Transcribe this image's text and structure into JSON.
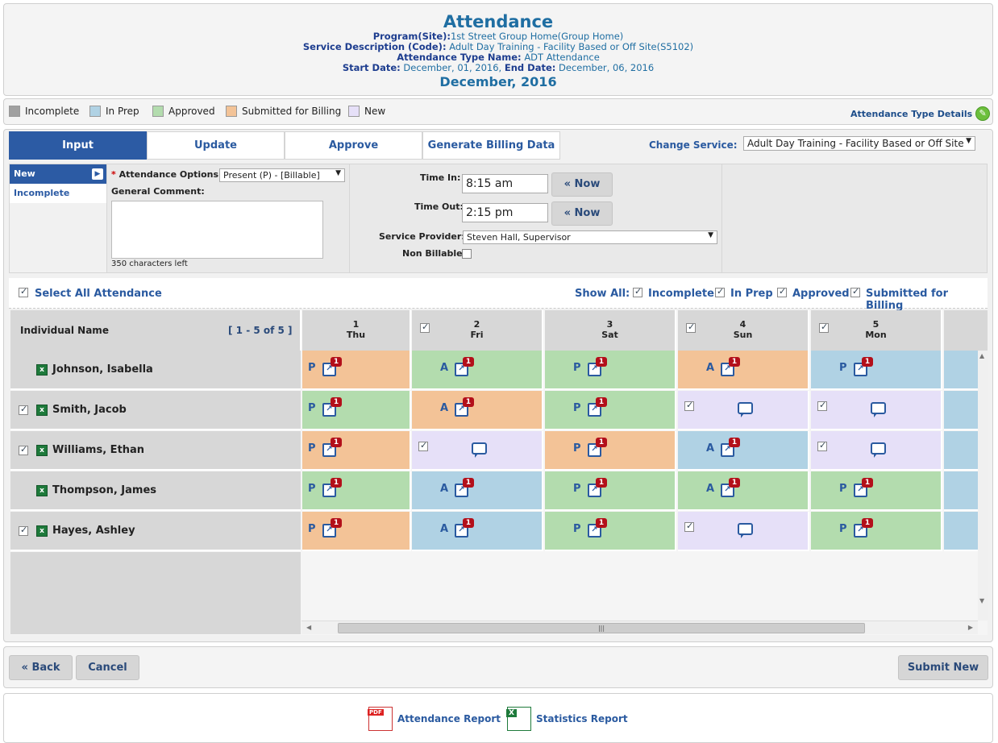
{
  "header": {
    "title": "Attendance",
    "program_label": "Program(Site):",
    "program_value": "1st Street Group Home(Group Home)",
    "service_label": "Service Description (Code):",
    "service_value": "Adult Day Training - Facility Based or Off Site(S5102)",
    "att_type_label": "Attendance Type Name:",
    "att_type_value": "ADT Attendance",
    "start_label": "Start Date:",
    "start_value": "December, 01, 2016,",
    "end_label": "End Date:",
    "end_value": "December, 06, 2016",
    "month": "December, 2016"
  },
  "legend": {
    "items": [
      {
        "label": "Incomplete",
        "color": "#a0a0a0"
      },
      {
        "label": "In Prep",
        "color": "#b0d2e4"
      },
      {
        "label": "Approved",
        "color": "#b3dcae"
      },
      {
        "label": "Submitted for Billing",
        "color": "#f3c397"
      },
      {
        "label": "New",
        "color": "#e6e0f8"
      }
    ],
    "details_link": "Attendance Type Details"
  },
  "tabs": [
    "Input",
    "Update",
    "Approve",
    "Generate Billing Data"
  ],
  "change_service": {
    "label": "Change Service:",
    "value": "Adult Day Training - Facility Based or Off Site"
  },
  "input": {
    "status_items": [
      "New",
      "Incomplete"
    ],
    "attendance_options_label": "Attendance Options:",
    "attendance_options_value": "Present (P) - [Billable]",
    "general_comment_label": "General Comment:",
    "chars_left": "350 characters left",
    "time_in_label": "Time In:",
    "time_in_value": "8:15 am",
    "time_out_label": "Time Out:",
    "time_out_value": "2:15 pm",
    "now_label": "« Now",
    "service_provider_label": "Service Provider:",
    "service_provider_value": "Steven Hall, Supervisor",
    "non_billable_label": "Non Billable:"
  },
  "select_all": {
    "label": "Select All Attendance",
    "show_all_label": "Show All:",
    "filters": [
      "Incomplete",
      "In Prep",
      "Approved",
      "Submitted for Billing"
    ]
  },
  "grid": {
    "name_header": "Individual Name",
    "range": "[ 1 - 5 of 5 ]",
    "days": [
      {
        "num": "1",
        "dow": "Thu",
        "check": false
      },
      {
        "num": "2",
        "dow": "Fri",
        "check": true
      },
      {
        "num": "3",
        "dow": "Sat",
        "check": false
      },
      {
        "num": "4",
        "dow": "Sun",
        "check": true
      },
      {
        "num": "5",
        "dow": "Mon",
        "check": true
      }
    ],
    "rows": [
      {
        "name": "Johnson, Isabella",
        "check": false,
        "cells": [
          {
            "s": "bill",
            "code": "P"
          },
          {
            "s": "app",
            "code": "A"
          },
          {
            "s": "app",
            "code": "P"
          },
          {
            "s": "bill",
            "code": "A"
          },
          {
            "s": "prep",
            "code": "P"
          }
        ]
      },
      {
        "name": "Smith, Jacob",
        "check": true,
        "cells": [
          {
            "s": "app",
            "code": "P"
          },
          {
            "s": "bill",
            "code": "A"
          },
          {
            "s": "app",
            "code": "P"
          },
          {
            "s": "new",
            "code": ""
          },
          {
            "s": "new",
            "code": ""
          }
        ]
      },
      {
        "name": "Williams, Ethan",
        "check": true,
        "cells": [
          {
            "s": "bill",
            "code": "P"
          },
          {
            "s": "new",
            "code": ""
          },
          {
            "s": "bill",
            "code": "P"
          },
          {
            "s": "prep",
            "code": "A"
          },
          {
            "s": "new",
            "code": ""
          }
        ]
      },
      {
        "name": "Thompson, James",
        "check": false,
        "cells": [
          {
            "s": "app",
            "code": "P"
          },
          {
            "s": "prep",
            "code": "A"
          },
          {
            "s": "app",
            "code": "P"
          },
          {
            "s": "app",
            "code": "A"
          },
          {
            "s": "app",
            "code": "P"
          }
        ]
      },
      {
        "name": "Hayes, Ashley",
        "check": true,
        "cells": [
          {
            "s": "bill",
            "code": "P"
          },
          {
            "s": "prep",
            "code": "A"
          },
          {
            "s": "app",
            "code": "P"
          },
          {
            "s": "new",
            "code": ""
          },
          {
            "s": "app",
            "code": "P"
          }
        ]
      }
    ],
    "badge": "1"
  },
  "buttons": {
    "back": "« Back",
    "cancel": "Cancel",
    "submit": "Submit New"
  },
  "reports": {
    "attendance": "Attendance Report",
    "statistics": "Statistics Report"
  }
}
